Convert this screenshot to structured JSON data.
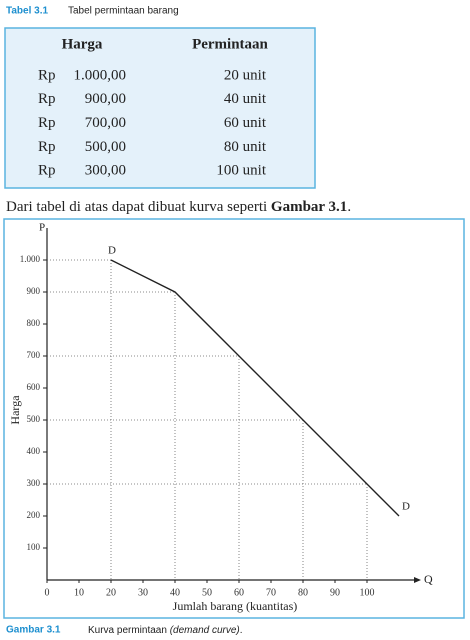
{
  "table_caption": {
    "label": "Tabel 3.1",
    "text": "Tabel permintaan barang"
  },
  "table": {
    "header": [
      "Harga",
      "Permintaan"
    ],
    "rows": [
      [
        "Rp",
        "1.000,00",
        "20 unit"
      ],
      [
        "Rp",
        "900,00",
        "40 unit"
      ],
      [
        "Rp",
        "700,00",
        "60 unit"
      ],
      [
        "Rp",
        "500,00",
        "80 unit"
      ],
      [
        "Rp",
        "300,00",
        "100 unit"
      ]
    ]
  },
  "sentence": [
    "Dari tabel di atas dapat dibuat kurva seperti ",
    "Gambar 3.1",
    "."
  ],
  "chart_data": {
    "type": "line",
    "x_label": "Jumlah barang (kuantitas)",
    "y_label": "Harga",
    "x_symbol": "Q",
    "y_symbol": "P",
    "start_label": "D",
    "end_label": "D",
    "x": [
      20,
      40,
      60,
      80,
      100,
      110
    ],
    "series": [
      {
        "name": "D",
        "color": "#222222",
        "values": [
          1000,
          900,
          700,
          500,
          300,
          200
        ]
      }
    ],
    "xlim": [
      0,
      115
    ],
    "ylim": [
      0,
      1100
    ],
    "xticks": [
      0,
      10,
      20,
      30,
      40,
      50,
      60,
      70,
      80,
      90,
      100
    ],
    "yticks": [
      100,
      200,
      300,
      400,
      500,
      600,
      700,
      800,
      900,
      {
        "value": 1000,
        "label": "1.000"
      }
    ]
  },
  "figure_caption": {
    "label": "Gambar 3.1",
    "text": [
      "Kurva permintaan ",
      "(demand curve)",
      "."
    ]
  }
}
